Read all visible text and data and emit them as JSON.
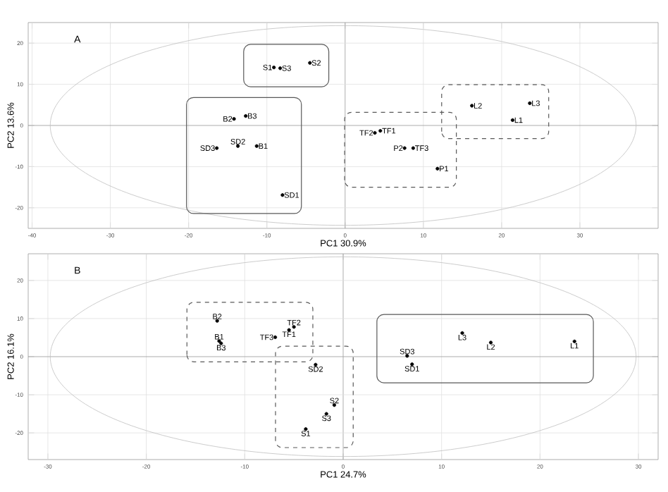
{
  "chart_data": [
    {
      "type": "scatter",
      "title": "A",
      "xlabel": "PC1 30.9%",
      "ylabel": "PC2 13.6%",
      "xlim": [
        -40.5,
        40
      ],
      "ylim": [
        -25,
        25
      ],
      "xticks": [
        -40,
        -30,
        -20,
        -10,
        0,
        10,
        20,
        30
      ],
      "yticks": [
        -20,
        -10,
        0,
        10,
        20
      ],
      "grid": true,
      "series": [
        {
          "color": "#000000",
          "x": [
            -9.1,
            -8.3,
            -4.5,
            -14.2,
            -12.7,
            -13.7,
            -16.4,
            -11.3,
            -8.0,
            3.8,
            4.5,
            7.6,
            8.7,
            11.8,
            16.2,
            23.6,
            21.4
          ],
          "values": [
            14.1,
            13.9,
            15.2,
            1.6,
            2.3,
            -5.0,
            -5.5,
            -5.0,
            -16.9,
            -1.8,
            -1.3,
            -5.5,
            -5.5,
            -10.5,
            4.8,
            5.4,
            1.3
          ]
        }
      ],
      "annotations": [
        {
          "text": "S1",
          "x": -9.1,
          "y": 14.1
        },
        {
          "text": "S3",
          "x": -8.3,
          "y": 13.9
        },
        {
          "text": "S2",
          "x": -4.5,
          "y": 15.2
        },
        {
          "text": "B2",
          "x": -14.2,
          "y": 1.6
        },
        {
          "text": "B3",
          "x": -12.7,
          "y": 2.3
        },
        {
          "text": "SD2",
          "x": -13.7,
          "y": -5.0
        },
        {
          "text": "SD3",
          "x": -16.4,
          "y": -5.5
        },
        {
          "text": "B1",
          "x": -11.3,
          "y": -5.0
        },
        {
          "text": "SD1",
          "x": -8.0,
          "y": -16.9
        },
        {
          "text": "TF2",
          "x": 3.8,
          "y": -1.8
        },
        {
          "text": "TF1",
          "x": 4.5,
          "y": -1.3
        },
        {
          "text": "P2",
          "x": 7.6,
          "y": -5.5
        },
        {
          "text": "TF3",
          "x": 8.7,
          "y": -5.5
        },
        {
          "text": "P1",
          "x": 11.8,
          "y": -10.5
        },
        {
          "text": "L2",
          "x": 16.2,
          "y": 4.8
        },
        {
          "text": "L3",
          "x": 23.6,
          "y": 5.4
        },
        {
          "text": "L1",
          "x": 21.4,
          "y": 1.3
        }
      ]
    },
    {
      "type": "scatter",
      "title": "B",
      "xlabel": "PC1 24.7%",
      "ylabel": "PC2 16.1%",
      "xlim": [
        -32,
        32
      ],
      "ylim": [
        -27,
        27
      ],
      "xticks": [
        -30,
        -20,
        -10,
        0,
        10,
        20,
        30
      ],
      "yticks": [
        -20,
        -10,
        0,
        10,
        20
      ],
      "grid": true,
      "series": [
        {
          "color": "#000000",
          "x": [
            -12.8,
            -12.6,
            -12.4,
            -6.9,
            -5.5,
            -5.0,
            -2.8,
            -0.9,
            -1.7,
            -3.8,
            6.5,
            7.0,
            12.1,
            15.0,
            23.5
          ],
          "values": [
            9.4,
            4.1,
            3.5,
            5.1,
            7.0,
            7.8,
            -2.1,
            -12.7,
            -15.0,
            -19.0,
            0.2,
            -2.0,
            6.2,
            3.7,
            4.0
          ]
        }
      ],
      "annotations": [
        {
          "text": "B2",
          "x": -12.8,
          "y": 9.4
        },
        {
          "text": "B1",
          "x": -12.6,
          "y": 4.1
        },
        {
          "text": "B3",
          "x": -12.4,
          "y": 3.5
        },
        {
          "text": "TF3",
          "x": -6.9,
          "y": 5.1
        },
        {
          "text": "TF1",
          "x": -5.5,
          "y": 7.0
        },
        {
          "text": "TF2",
          "x": -5.0,
          "y": 7.8
        },
        {
          "text": "SD2",
          "x": -2.8,
          "y": -2.1
        },
        {
          "text": "S2",
          "x": -0.9,
          "y": -12.7
        },
        {
          "text": "S3",
          "x": -1.7,
          "y": -15.0
        },
        {
          "text": "S1",
          "x": -3.8,
          "y": -19.0
        },
        {
          "text": "SD3",
          "x": 6.5,
          "y": 0.2
        },
        {
          "text": "SD1",
          "x": 7.0,
          "y": -2.0
        },
        {
          "text": "L3",
          "x": 12.1,
          "y": 6.2
        },
        {
          "text": "L2",
          "x": 15.0,
          "y": 3.7
        },
        {
          "text": "L1",
          "x": 23.5,
          "y": 4.0
        }
      ]
    }
  ]
}
